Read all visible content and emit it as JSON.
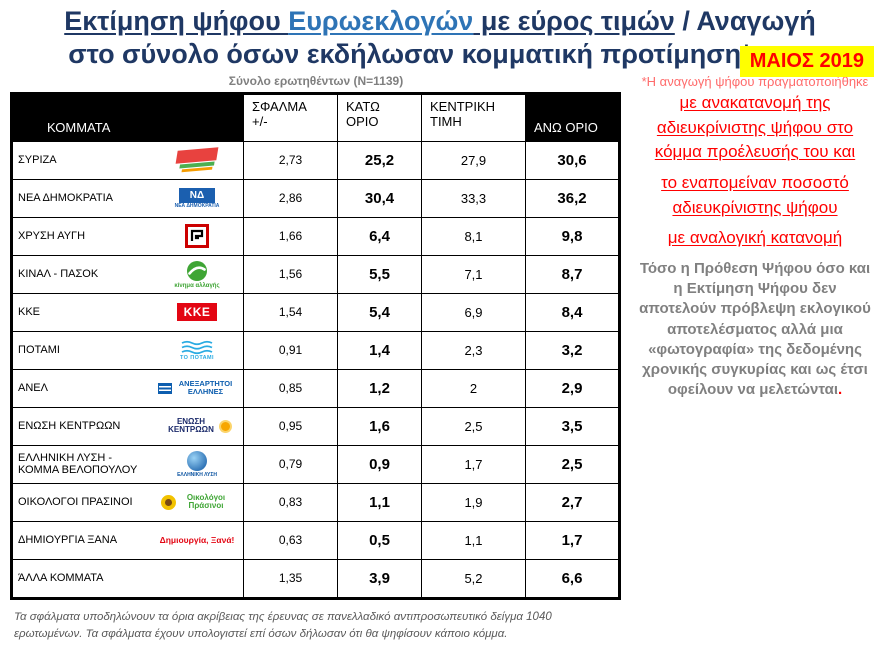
{
  "title": {
    "part1": "Εκτίμηση ψήφου ",
    "part2": "Ευρωεκλογών",
    "part3": " με εύρος τιμών",
    "part4": " / Αναγωγή",
    "line2": "στο σύνολο όσων εκδήλωσαν κομματική προτίμηση*",
    "badge": "ΜΑΙΟΣ 2019"
  },
  "subtitle": "Σύνολο ερωτηθέντων (N=1139)",
  "table": {
    "headers": {
      "party": "ΚΟΜΜΑΤΑ",
      "error": "ΣΦΑΛΜΑ\n+/-",
      "low": "ΚΑΤΩ\nΟΡΙΟ",
      "mid": "ΚΕΝΤΡΙΚΗ\nΤΙΜΗ",
      "high": "ΑΝΩ ΟΡΙΟ"
    },
    "rows": [
      {
        "party": "ΣΥΡΙΖΑ",
        "logo_type": "syriza",
        "logo_text": "",
        "logo_caption": "",
        "error": "2,73",
        "low": "25,2",
        "mid": "27,9",
        "high": "30,6"
      },
      {
        "party": "ΝΕΑ ΔΗΜΟΚΡΑΤΙΑ",
        "logo_type": "nd",
        "logo_text": "ΝΔ",
        "logo_caption": "ΝΕΑ ΔΗΜΟΚΡΑΤΙΑ",
        "error": "2,86",
        "low": "30,4",
        "mid": "33,3",
        "high": "36,2"
      },
      {
        "party": "ΧΡΥΣΗ ΑΥΓΗ",
        "logo_type": "xrysh-avgh",
        "logo_text": "",
        "logo_caption": "",
        "error": "1,66",
        "low": "6,4",
        "mid": "8,1",
        "high": "9,8"
      },
      {
        "party": "ΚΙΝΑΛ - ΠΑΣΟΚ",
        "logo_type": "kinal",
        "logo_text": "",
        "logo_caption": "κίνημα αλλαγής",
        "error": "1,56",
        "low": "5,5",
        "mid": "7,1",
        "high": "8,7"
      },
      {
        "party": "ΚΚΕ",
        "logo_type": "kke",
        "logo_text": "ΚΚΕ",
        "logo_caption": "",
        "error": "1,54",
        "low": "5,4",
        "mid": "6,9",
        "high": "8,4"
      },
      {
        "party": "ΠΟΤΑΜΙ",
        "logo_type": "potami",
        "logo_text": "",
        "logo_caption": "ΤΟ ΠΟΤΑΜΙ",
        "error": "0,91",
        "low": "1,4",
        "mid": "2,3",
        "high": "3,2"
      },
      {
        "party": "ΑΝΕΛ",
        "logo_type": "anel",
        "logo_text": "ΑΝΕΞΑΡΤΗΤΟΙ ΕΛΛΗΝΕΣ",
        "logo_caption": "",
        "error": "0,85",
        "low": "1,2",
        "mid": "2",
        "high": "2,9"
      },
      {
        "party": "ΕΝΩΣΗ ΚΕΝΤΡΩΩΝ",
        "logo_type": "enosi-kentroon",
        "logo_text": "ΕΝΩΣΗ ΚΕΝΤΡΩΩΝ",
        "logo_caption": "",
        "error": "0,95",
        "low": "1,6",
        "mid": "2,5",
        "high": "3,5"
      },
      {
        "party": "ΕΛΛΗΝΙΚΗ ΛΥΣΗ - ΚΟΜΜΑ ΒΕΛΟΠΟΥΛΟΥ",
        "logo_type": "elliniki-lysi",
        "logo_text": "",
        "logo_caption": "ΕΛΛΗΝΙΚΗ ΛΥΣΗ",
        "error": "0,79",
        "low": "0,9",
        "mid": "1,7",
        "high": "2,5"
      },
      {
        "party": "ΟΙΚΟΛΟΓΟΙ ΠΡΑΣΙΝΟΙ",
        "logo_type": "oikologoi-prasinoi",
        "logo_text": "",
        "logo_caption": "Οικολόγοι Πράσινοι",
        "error": "0,83",
        "low": "1,1",
        "mid": "1,9",
        "high": "2,7"
      },
      {
        "party": "ΔΗΜΙΟΥΡΓΙΑ ΞΑΝΑ",
        "logo_type": "dimiourgia-xana",
        "logo_text": "",
        "logo_caption": "Δημιουργία, Ξανά!",
        "error": "0,63",
        "low": "0,5",
        "mid": "1,1",
        "high": "1,7"
      },
      {
        "party": "ΆΛΛΑ ΚΟΜΜΑΤΑ",
        "logo_type": "",
        "logo_text": "",
        "logo_caption": "",
        "error": "1,35",
        "low": "3,9",
        "mid": "5,2",
        "high": "6,6"
      }
    ]
  },
  "footnote": "Τα σφάλματα υποδηλώνουν τα όρια ακρίβειας της έρευνας σε πανελλαδικό αντιπροσωπευτικό δείγμα 1040 ερωτωμένων. Τα σφάλματα έχουν υπολογιστεί επί όσων δήλωσαν ότι θα ψηφίσουν κάποιο κόμμα.",
  "sidebar": {
    "intro": "*Η αναγωγή ψήφου πραγματοποιήθηκε ",
    "red1": "με ανακατανομή της αδιευκρίνιστης ψήφου στο κόμμα προέλευσής του και",
    "red2": "το εναπομείναν ποσοστό αδιευκρίνιστης ψήφου",
    "red3": "με αναλογική κατανομή",
    "gray": "Τόσο η Πρόθεση Ψήφου όσο και η Εκτίμηση Ψήφου δεν αποτελούν πρόβλεψη εκλογικού αποτελέσματος αλλά μια «φωτογραφία» της δεδομένης χρονικής συγκυρίας και ως έτσι οφείλουν να μελετώνται",
    "dot": "."
  },
  "colors": {
    "title_navy": "#1F3864",
    "title_blue": "#2E74B6",
    "badge_bg": "#FFFF00",
    "badge_text": "#FF0000",
    "red": "#FF0000",
    "gray": "#808080",
    "header_bg": "#000000"
  }
}
